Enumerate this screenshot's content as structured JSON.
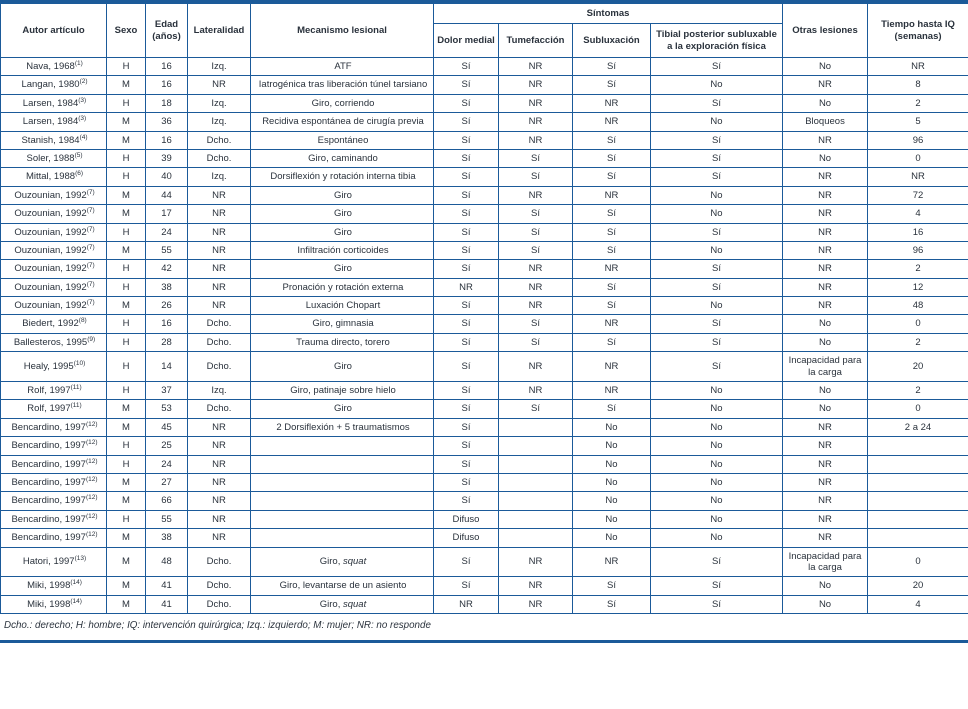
{
  "colors": {
    "border": "#1b5a99",
    "text": "#2a323c"
  },
  "table": {
    "header": {
      "autor": "Autor artículo",
      "sexo": "Sexo",
      "edad": "Edad (años)",
      "lateralidad": "Lateralidad",
      "mecanismo": "Mecanismo lesional",
      "sintomas_group": "Síntomas",
      "dolor_medial": "Dolor medial",
      "tumefaccion": "Tumefacción",
      "subluxacion": "Subluxación",
      "tibial_posterior": "Tibial posterior subluxable a la exploración física",
      "otras_lesiones": "Otras lesiones",
      "tiempo_iq": "Tiempo hasta IQ (semanas)"
    },
    "columns_order": [
      "autor",
      "ref",
      "sexo",
      "edad",
      "lateralidad",
      "mecanismo",
      "dolor_medial",
      "tumefaccion",
      "subluxacion",
      "tibial_posterior",
      "otras_lesiones",
      "tiempo_iq"
    ],
    "rows": [
      [
        "Nava, 1968",
        "(1)",
        "H",
        "16",
        "Izq.",
        "ATF",
        "Sí",
        "NR",
        "Sí",
        "Sí",
        "No",
        "NR"
      ],
      [
        "Langan, 1980",
        "(2)",
        "M",
        "16",
        "NR",
        "Iatrogénica tras liberación túnel tarsiano",
        "Sí",
        "NR",
        "Sí",
        "No",
        "NR",
        "8"
      ],
      [
        "Larsen, 1984",
        "(3)",
        "H",
        "18",
        "Izq.",
        "Giro, corriendo",
        "Sí",
        "NR",
        "NR",
        "Sí",
        "No",
        "2"
      ],
      [
        "Larsen, 1984",
        "(3)",
        "M",
        "36",
        "Izq.",
        "Recidiva espontánea de cirugía previa",
        "Sí",
        "NR",
        "NR",
        "No",
        "Bloqueos",
        "5"
      ],
      [
        "Stanish, 1984",
        "(4)",
        "M",
        "16",
        "Dcho.",
        "Espontáneo",
        "Sí",
        "NR",
        "Sí",
        "Sí",
        "NR",
        "96"
      ],
      [
        "Soler, 1988",
        "(5)",
        "H",
        "39",
        "Dcho.",
        "Giro, caminando",
        "Sí",
        "Sí",
        "Sí",
        "Sí",
        "No",
        "0"
      ],
      [
        "Mittal, 1988",
        "(6)",
        "H",
        "40",
        "Izq.",
        "Dorsiflexión y rotación interna tibia",
        "Sí",
        "Sí",
        "Sí",
        "Sí",
        "NR",
        "NR"
      ],
      [
        "Ouzounian, 1992",
        "(7)",
        "M",
        "44",
        "NR",
        "Giro",
        "Sí",
        "NR",
        "NR",
        "No",
        "NR",
        "72"
      ],
      [
        "Ouzounian, 1992",
        "(7)",
        "M",
        "17",
        "NR",
        "Giro",
        "Sí",
        "Sí",
        "Sí",
        "No",
        "NR",
        "4"
      ],
      [
        "Ouzounian, 1992",
        "(7)",
        "H",
        "24",
        "NR",
        "Giro",
        "Sí",
        "Sí",
        "Sí",
        "Sí",
        "NR",
        "16"
      ],
      [
        "Ouzounian, 1992",
        "(7)",
        "M",
        "55",
        "NR",
        "Infiltración corticoides",
        "Sí",
        "Sí",
        "Sí",
        "No",
        "NR",
        "96"
      ],
      [
        "Ouzounian, 1992",
        "(7)",
        "H",
        "42",
        "NR",
        "Giro",
        "Sí",
        "NR",
        "NR",
        "Sí",
        "NR",
        "2"
      ],
      [
        "Ouzounian, 1992",
        "(7)",
        "H",
        "38",
        "NR",
        "Pronación y rotación externa",
        "NR",
        "NR",
        "Sí",
        "Sí",
        "NR",
        "12"
      ],
      [
        "Ouzounian, 1992",
        "(7)",
        "M",
        "26",
        "NR",
        "Luxación Chopart",
        "Sí",
        "NR",
        "Sí",
        "No",
        "NR",
        "48"
      ],
      [
        "Biedert, 1992",
        "(8)",
        "H",
        "16",
        "Dcho.",
        "Giro, gimnasia",
        "Sí",
        "Sí",
        "NR",
        "Sí",
        "No",
        "0"
      ],
      [
        "Ballesteros, 1995",
        "(9)",
        "H",
        "28",
        "Dcho.",
        "Trauma directo, torero",
        "Sí",
        "Sí",
        "Sí",
        "Sí",
        "No",
        "2"
      ],
      [
        "Healy, 1995",
        "(10)",
        "H",
        "14",
        "Dcho.",
        "Giro",
        "Sí",
        "NR",
        "NR",
        "Sí",
        "Incapacidad para la carga",
        "20"
      ],
      [
        "Rolf, 1997",
        "(11)",
        "H",
        "37",
        "Izq.",
        "Giro, patinaje sobre hielo",
        "Sí",
        "NR",
        "NR",
        "No",
        "No",
        "2"
      ],
      [
        "Rolf, 1997",
        "(11)",
        "M",
        "53",
        "Dcho.",
        "Giro",
        "Sí",
        "Sí",
        "Sí",
        "No",
        "No",
        "0"
      ],
      [
        "Bencardino, 1997",
        "(12)",
        "M",
        "45",
        "NR",
        "2 Dorsiflexión + 5 traumatismos",
        "Sí",
        "",
        "No",
        "No",
        "NR",
        "2 a 24"
      ],
      [
        "Bencardino, 1997",
        "(12)",
        "H",
        "25",
        "NR",
        "",
        "Sí",
        "",
        "No",
        "No",
        "NR",
        ""
      ],
      [
        "Bencardino, 1997",
        "(12)",
        "H",
        "24",
        "NR",
        "",
        "Sí",
        "",
        "No",
        "No",
        "NR",
        ""
      ],
      [
        "Bencardino, 1997",
        "(12)",
        "M",
        "27",
        "NR",
        "",
        "Sí",
        "",
        "No",
        "No",
        "NR",
        ""
      ],
      [
        "Bencardino, 1997",
        "(12)",
        "M",
        "66",
        "NR",
        "",
        "Sí",
        "",
        "No",
        "No",
        "NR",
        ""
      ],
      [
        "Bencardino, 1997",
        "(12)",
        "H",
        "55",
        "NR",
        "",
        "Difuso",
        "",
        "No",
        "No",
        "NR",
        ""
      ],
      [
        "Bencardino, 1997",
        "(12)",
        "M",
        "38",
        "NR",
        "",
        "Difuso",
        "",
        "No",
        "No",
        "NR",
        ""
      ],
      [
        "Hatori, 1997",
        "(13)",
        "M",
        "48",
        "Dcho.",
        "Giro, *squat*",
        "Sí",
        "NR",
        "NR",
        "Sí",
        "Incapacidad para la carga",
        "0"
      ],
      [
        "Miki, 1998",
        "(14)",
        "M",
        "41",
        "Dcho.",
        "Giro, levantarse de un asiento",
        "Sí",
        "NR",
        "Sí",
        "Sí",
        "No",
        "20"
      ],
      [
        "Miki, 1998",
        "(14)",
        "M",
        "41",
        "Dcho.",
        "Giro, *squat*",
        "NR",
        "NR",
        "Sí",
        "Sí",
        "No",
        "4"
      ]
    ],
    "footnote": "Dcho.: derecho; H: hombre; IQ: intervención quirúrgica; Izq.: izquierdo; M: mujer; NR: no responde"
  }
}
